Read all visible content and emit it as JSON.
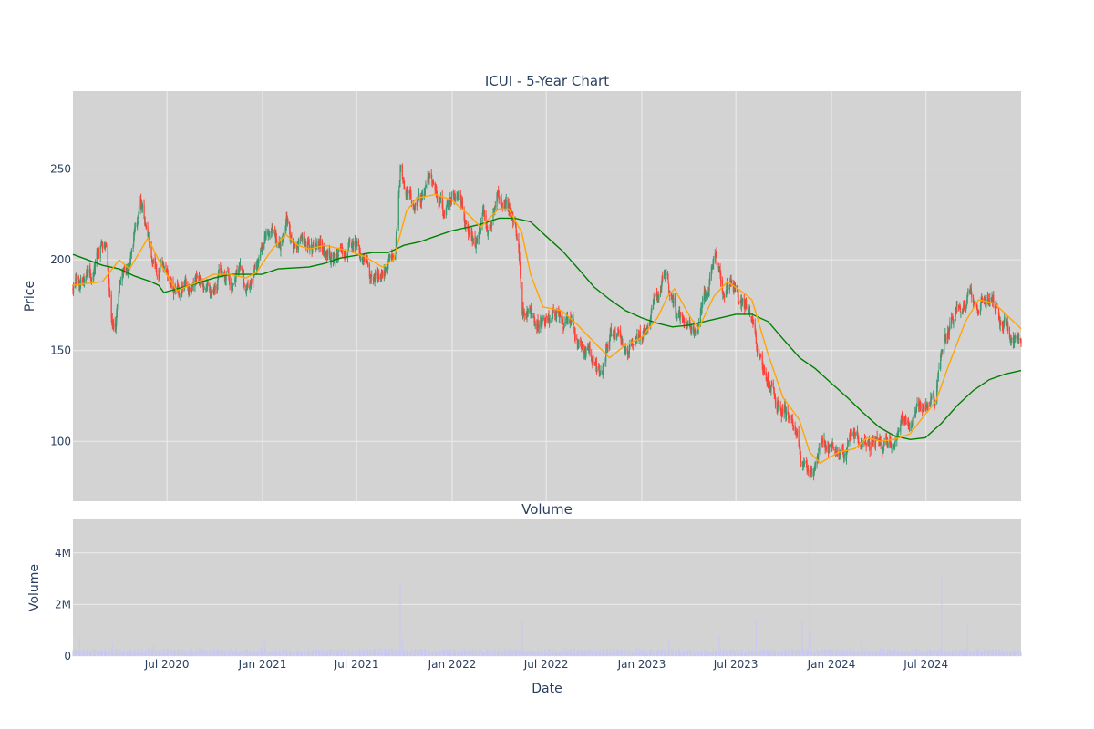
{
  "chart_data": [
    {
      "type": "candlestick",
      "title": "ICUI - 5-Year Chart",
      "xlabel": "",
      "ylabel": "Price",
      "ylim": [
        67,
        293
      ],
      "xlim": [
        "2020-01-02",
        "2024-12-31"
      ],
      "yticks": [
        100,
        150,
        200,
        250
      ],
      "xticks": [
        {
          "date": "2020-07-01",
          "label": "Jul 2020"
        },
        {
          "date": "2021-01-01",
          "label": "Jan 2021"
        },
        {
          "date": "2021-07-01",
          "label": "Jul 2021"
        },
        {
          "date": "2022-01-01",
          "label": "Jan 2022"
        },
        {
          "date": "2022-07-01",
          "label": "Jul 2022"
        },
        {
          "date": "2023-01-01",
          "label": "Jan 2023"
        },
        {
          "date": "2023-07-01",
          "label": "Jul 2023"
        },
        {
          "date": "2024-01-01",
          "label": "Jan 2024"
        },
        {
          "date": "2024-07-01",
          "label": "Jul 2024"
        }
      ],
      "grid": true,
      "colors": {
        "up": "#3d9970",
        "down": "#ff4136",
        "ma_short": "#ffa500",
        "ma_long": "#008000",
        "plot_bg": "#d3d3d3",
        "grid": "#ececec"
      },
      "close_path": [
        [
          "2020-01-02",
          186
        ],
        [
          "2020-01-20",
          188
        ],
        [
          "2020-02-10",
          190
        ],
        [
          "2020-02-24",
          205
        ],
        [
          "2020-03-05",
          214
        ],
        [
          "2020-03-16",
          175
        ],
        [
          "2020-03-24",
          162
        ],
        [
          "2020-04-06",
          192
        ],
        [
          "2020-04-20",
          200
        ],
        [
          "2020-05-04",
          218
        ],
        [
          "2020-05-11",
          230
        ],
        [
          "2020-05-19",
          220
        ],
        [
          "2020-06-02",
          195
        ],
        [
          "2020-06-15",
          190
        ],
        [
          "2020-06-29",
          195
        ],
        [
          "2020-07-13",
          178
        ],
        [
          "2020-07-27",
          180
        ],
        [
          "2020-08-10",
          184
        ],
        [
          "2020-08-24",
          190
        ],
        [
          "2020-09-08",
          188
        ],
        [
          "2020-09-21",
          182
        ],
        [
          "2020-10-05",
          190
        ],
        [
          "2020-10-19",
          196
        ],
        [
          "2020-11-02",
          188
        ],
        [
          "2020-11-16",
          196
        ],
        [
          "2020-11-30",
          188
        ],
        [
          "2020-12-14",
          194
        ],
        [
          "2021-01-04",
          214
        ],
        [
          "2021-01-19",
          220
        ],
        [
          "2021-02-01",
          210
        ],
        [
          "2021-02-16",
          222
        ],
        [
          "2021-03-01",
          203
        ],
        [
          "2021-03-15",
          209
        ],
        [
          "2021-04-01",
          205
        ],
        [
          "2021-04-15",
          212
        ],
        [
          "2021-05-03",
          209
        ],
        [
          "2021-05-17",
          200
        ],
        [
          "2021-06-01",
          206
        ],
        [
          "2021-06-15",
          205
        ],
        [
          "2021-07-01",
          210
        ],
        [
          "2021-07-15",
          198
        ],
        [
          "2021-08-02",
          188
        ],
        [
          "2021-08-16",
          192
        ],
        [
          "2021-08-30",
          198
        ],
        [
          "2021-09-13",
          204
        ],
        [
          "2021-09-23",
          255
        ],
        [
          "2021-10-04",
          242
        ],
        [
          "2021-10-18",
          232
        ],
        [
          "2021-11-01",
          230
        ],
        [
          "2021-11-15",
          243
        ],
        [
          "2021-11-29",
          238
        ],
        [
          "2021-12-13",
          228
        ],
        [
          "2022-01-03",
          238
        ],
        [
          "2022-01-18",
          232
        ],
        [
          "2022-02-01",
          218
        ],
        [
          "2022-02-14",
          210
        ],
        [
          "2022-03-01",
          225
        ],
        [
          "2022-03-14",
          218
        ],
        [
          "2022-03-28",
          240
        ],
        [
          "2022-04-11",
          230
        ],
        [
          "2022-04-25",
          225
        ],
        [
          "2022-05-09",
          210
        ],
        [
          "2022-05-16",
          175
        ],
        [
          "2022-05-31",
          178
        ],
        [
          "2022-06-13",
          165
        ],
        [
          "2022-06-27",
          168
        ],
        [
          "2022-07-11",
          172
        ],
        [
          "2022-07-25",
          175
        ],
        [
          "2022-08-08",
          168
        ],
        [
          "2022-08-22",
          160
        ],
        [
          "2022-09-06",
          155
        ],
        [
          "2022-09-19",
          148
        ],
        [
          "2022-10-03",
          138
        ],
        [
          "2022-10-17",
          135
        ],
        [
          "2022-10-31",
          158
        ],
        [
          "2022-11-14",
          160
        ],
        [
          "2022-11-28",
          155
        ],
        [
          "2022-12-12",
          152
        ],
        [
          "2023-01-03",
          158
        ],
        [
          "2023-01-17",
          165
        ],
        [
          "2023-02-01",
          180
        ],
        [
          "2023-02-15",
          196
        ],
        [
          "2023-03-01",
          180
        ],
        [
          "2023-03-15",
          170
        ],
        [
          "2023-03-29",
          158
        ],
        [
          "2023-04-12",
          160
        ],
        [
          "2023-04-26",
          170
        ],
        [
          "2023-05-10",
          185
        ],
        [
          "2023-05-22",
          205
        ],
        [
          "2023-06-05",
          185
        ],
        [
          "2023-06-20",
          192
        ],
        [
          "2023-07-05",
          180
        ],
        [
          "2023-07-19",
          175
        ],
        [
          "2023-08-01",
          170
        ],
        [
          "2023-08-10",
          150
        ],
        [
          "2023-08-24",
          135
        ],
        [
          "2023-09-11",
          128
        ],
        [
          "2023-09-25",
          120
        ],
        [
          "2023-10-09",
          115
        ],
        [
          "2023-10-23",
          110
        ],
        [
          "2023-11-06",
          88
        ],
        [
          "2023-11-20",
          85
        ],
        [
          "2023-12-04",
          90
        ],
        [
          "2023-12-18",
          98
        ],
        [
          "2024-01-03",
          95
        ],
        [
          "2024-01-17",
          94
        ],
        [
          "2024-02-01",
          95
        ],
        [
          "2024-02-15",
          104
        ],
        [
          "2024-02-29",
          100
        ],
        [
          "2024-03-14",
          98
        ],
        [
          "2024-03-28",
          103
        ],
        [
          "2024-04-11",
          97
        ],
        [
          "2024-04-25",
          100
        ],
        [
          "2024-05-09",
          106
        ],
        [
          "2024-05-23",
          108
        ],
        [
          "2024-06-06",
          117
        ],
        [
          "2024-06-20",
          120
        ],
        [
          "2024-07-03",
          125
        ],
        [
          "2024-07-17",
          123
        ],
        [
          "2024-07-31",
          148
        ],
        [
          "2024-08-14",
          160
        ],
        [
          "2024-08-28",
          168
        ],
        [
          "2024-09-11",
          178
        ],
        [
          "2024-09-25",
          180
        ],
        [
          "2024-10-09",
          178
        ],
        [
          "2024-10-23",
          180
        ],
        [
          "2024-11-06",
          178
        ],
        [
          "2024-11-20",
          170
        ],
        [
          "2024-12-04",
          162
        ],
        [
          "2024-12-18",
          157
        ],
        [
          "2024-12-31",
          154
        ]
      ],
      "moving_average_short": [
        [
          "2020-01-02",
          186
        ],
        [
          "2020-02-28",
          188
        ],
        [
          "2020-03-31",
          200
        ],
        [
          "2020-04-20",
          195
        ],
        [
          "2020-05-11",
          205
        ],
        [
          "2020-05-25",
          212
        ],
        [
          "2020-06-22",
          196
        ],
        [
          "2020-07-20",
          183
        ],
        [
          "2020-08-31",
          188
        ],
        [
          "2020-09-28",
          192
        ],
        [
          "2020-10-31",
          192
        ],
        [
          "2020-11-30",
          190
        ],
        [
          "2020-12-20",
          193
        ],
        [
          "2021-01-20",
          206
        ],
        [
          "2021-02-15",
          214
        ],
        [
          "2021-03-10",
          208
        ],
        [
          "2021-04-01",
          206
        ],
        [
          "2021-05-01",
          208
        ],
        [
          "2021-06-15",
          205
        ],
        [
          "2021-07-15",
          202
        ],
        [
          "2021-08-20",
          196
        ],
        [
          "2021-09-10",
          200
        ],
        [
          "2021-10-05",
          227
        ],
        [
          "2021-10-25",
          234
        ],
        [
          "2021-11-30",
          236
        ],
        [
          "2021-12-31",
          233
        ],
        [
          "2022-02-01",
          225
        ],
        [
          "2022-02-25",
          218
        ],
        [
          "2022-03-31",
          228
        ],
        [
          "2022-04-20",
          228
        ],
        [
          "2022-05-15",
          215
        ],
        [
          "2022-06-01",
          192
        ],
        [
          "2022-06-25",
          174
        ],
        [
          "2022-07-31",
          172
        ],
        [
          "2022-08-31",
          164
        ],
        [
          "2022-09-30",
          155
        ],
        [
          "2022-10-31",
          146
        ],
        [
          "2022-11-30",
          153
        ],
        [
          "2022-12-31",
          157
        ],
        [
          "2023-01-31",
          168
        ],
        [
          "2023-02-20",
          180
        ],
        [
          "2023-03-05",
          184
        ],
        [
          "2023-04-05",
          168
        ],
        [
          "2023-04-20",
          162
        ],
        [
          "2023-05-20",
          180
        ],
        [
          "2023-06-15",
          188
        ],
        [
          "2023-07-15",
          182
        ],
        [
          "2023-08-01",
          178
        ],
        [
          "2023-09-01",
          148
        ],
        [
          "2023-09-30",
          124
        ],
        [
          "2023-10-31",
          112
        ],
        [
          "2023-11-20",
          94
        ],
        [
          "2023-12-10",
          88
        ],
        [
          "2024-01-15",
          94
        ],
        [
          "2024-02-15",
          96
        ],
        [
          "2024-03-10",
          102
        ],
        [
          "2024-04-05",
          100
        ],
        [
          "2024-04-30",
          101
        ],
        [
          "2024-05-31",
          104
        ],
        [
          "2024-06-30",
          115
        ],
        [
          "2024-07-20",
          122
        ],
        [
          "2024-08-15",
          143
        ],
        [
          "2024-09-15",
          166
        ],
        [
          "2024-10-10",
          178
        ],
        [
          "2024-11-10",
          176
        ],
        [
          "2024-12-31",
          162
        ]
      ],
      "moving_average_long": [
        [
          "2020-01-02",
          203
        ],
        [
          "2020-02-28",
          197
        ],
        [
          "2020-03-31",
          195
        ],
        [
          "2020-04-30",
          191
        ],
        [
          "2020-05-31",
          188
        ],
        [
          "2020-06-15",
          186
        ],
        [
          "2020-06-25",
          182
        ],
        [
          "2020-08-15",
          186
        ],
        [
          "2020-09-30",
          190
        ],
        [
          "2020-10-31",
          192
        ],
        [
          "2020-12-31",
          192
        ],
        [
          "2021-01-31",
          195
        ],
        [
          "2021-03-31",
          196
        ],
        [
          "2021-04-30",
          198
        ],
        [
          "2021-05-31",
          201
        ],
        [
          "2021-07-31",
          204
        ],
        [
          "2021-08-31",
          204
        ],
        [
          "2021-09-30",
          208
        ],
        [
          "2021-10-31",
          210
        ],
        [
          "2021-11-30",
          213
        ],
        [
          "2021-12-31",
          216
        ],
        [
          "2022-02-01",
          218
        ],
        [
          "2022-03-01",
          220
        ],
        [
          "2022-04-01",
          223
        ],
        [
          "2022-05-01",
          223
        ],
        [
          "2022-06-01",
          221
        ],
        [
          "2022-07-01",
          213
        ],
        [
          "2022-08-01",
          205
        ],
        [
          "2022-09-01",
          195
        ],
        [
          "2022-10-01",
          185
        ],
        [
          "2022-11-01",
          178
        ],
        [
          "2022-12-01",
          172
        ],
        [
          "2023-01-01",
          168
        ],
        [
          "2023-02-01",
          165
        ],
        [
          "2023-03-01",
          163
        ],
        [
          "2023-04-01",
          164
        ],
        [
          "2023-05-01",
          166
        ],
        [
          "2023-06-01",
          168
        ],
        [
          "2023-07-01",
          170
        ],
        [
          "2023-08-01",
          170
        ],
        [
          "2023-09-01",
          166
        ],
        [
          "2023-10-01",
          156
        ],
        [
          "2023-11-01",
          146
        ],
        [
          "2023-12-01",
          140
        ],
        [
          "2024-01-01",
          132
        ],
        [
          "2024-02-01",
          124
        ],
        [
          "2024-03-01",
          116
        ],
        [
          "2024-04-01",
          108
        ],
        [
          "2024-05-01",
          103
        ],
        [
          "2024-06-01",
          101
        ],
        [
          "2024-06-30",
          102
        ],
        [
          "2024-07-31",
          110
        ],
        [
          "2024-08-31",
          120
        ],
        [
          "2024-09-30",
          128
        ],
        [
          "2024-10-31",
          134
        ],
        [
          "2024-11-30",
          137
        ],
        [
          "2024-12-31",
          139
        ]
      ]
    },
    {
      "type": "bar",
      "title": "Volume",
      "xlabel": "Date",
      "ylabel": "Volume",
      "ylim": [
        0,
        5300000
      ],
      "xlim": [
        "2020-01-02",
        "2024-12-31"
      ],
      "yticks": [
        {
          "value": 0,
          "label": "0"
        },
        {
          "value": 2000000,
          "label": "2M"
        },
        {
          "value": 4000000,
          "label": "4M"
        }
      ],
      "xticks": [
        {
          "date": "2020-07-01",
          "label": "Jul 2020"
        },
        {
          "date": "2021-01-01",
          "label": "Jan 2021"
        },
        {
          "date": "2021-07-01",
          "label": "Jul 2021"
        },
        {
          "date": "2022-01-01",
          "label": "Jan 2022"
        },
        {
          "date": "2022-07-01",
          "label": "Jul 2022"
        },
        {
          "date": "2023-01-01",
          "label": "Jan 2023"
        },
        {
          "date": "2023-07-01",
          "label": "Jul 2023"
        },
        {
          "date": "2024-01-01",
          "label": "Jan 2024"
        },
        {
          "date": "2024-07-01",
          "label": "Jul 2024"
        }
      ],
      "grid": true,
      "bar_color": "#c8c8f0",
      "typical_volume": 200000,
      "spikes": [
        [
          "2020-01-15",
          700000
        ],
        [
          "2020-03-18",
          500000
        ],
        [
          "2020-06-05",
          450000
        ],
        [
          "2021-01-05",
          600000
        ],
        [
          "2021-09-23",
          2800000
        ],
        [
          "2021-09-27",
          700000
        ],
        [
          "2022-05-16",
          1400000
        ],
        [
          "2022-08-22",
          1100000
        ],
        [
          "2022-11-08",
          700000
        ],
        [
          "2023-02-22",
          600000
        ],
        [
          "2023-05-30",
          800000
        ],
        [
          "2023-08-09",
          1400000
        ],
        [
          "2023-11-06",
          1400000
        ],
        [
          "2023-11-20",
          4900000
        ],
        [
          "2023-11-22",
          900000
        ],
        [
          "2024-02-27",
          600000
        ],
        [
          "2024-07-31",
          3100000
        ],
        [
          "2024-09-19",
          1200000
        ]
      ]
    }
  ]
}
